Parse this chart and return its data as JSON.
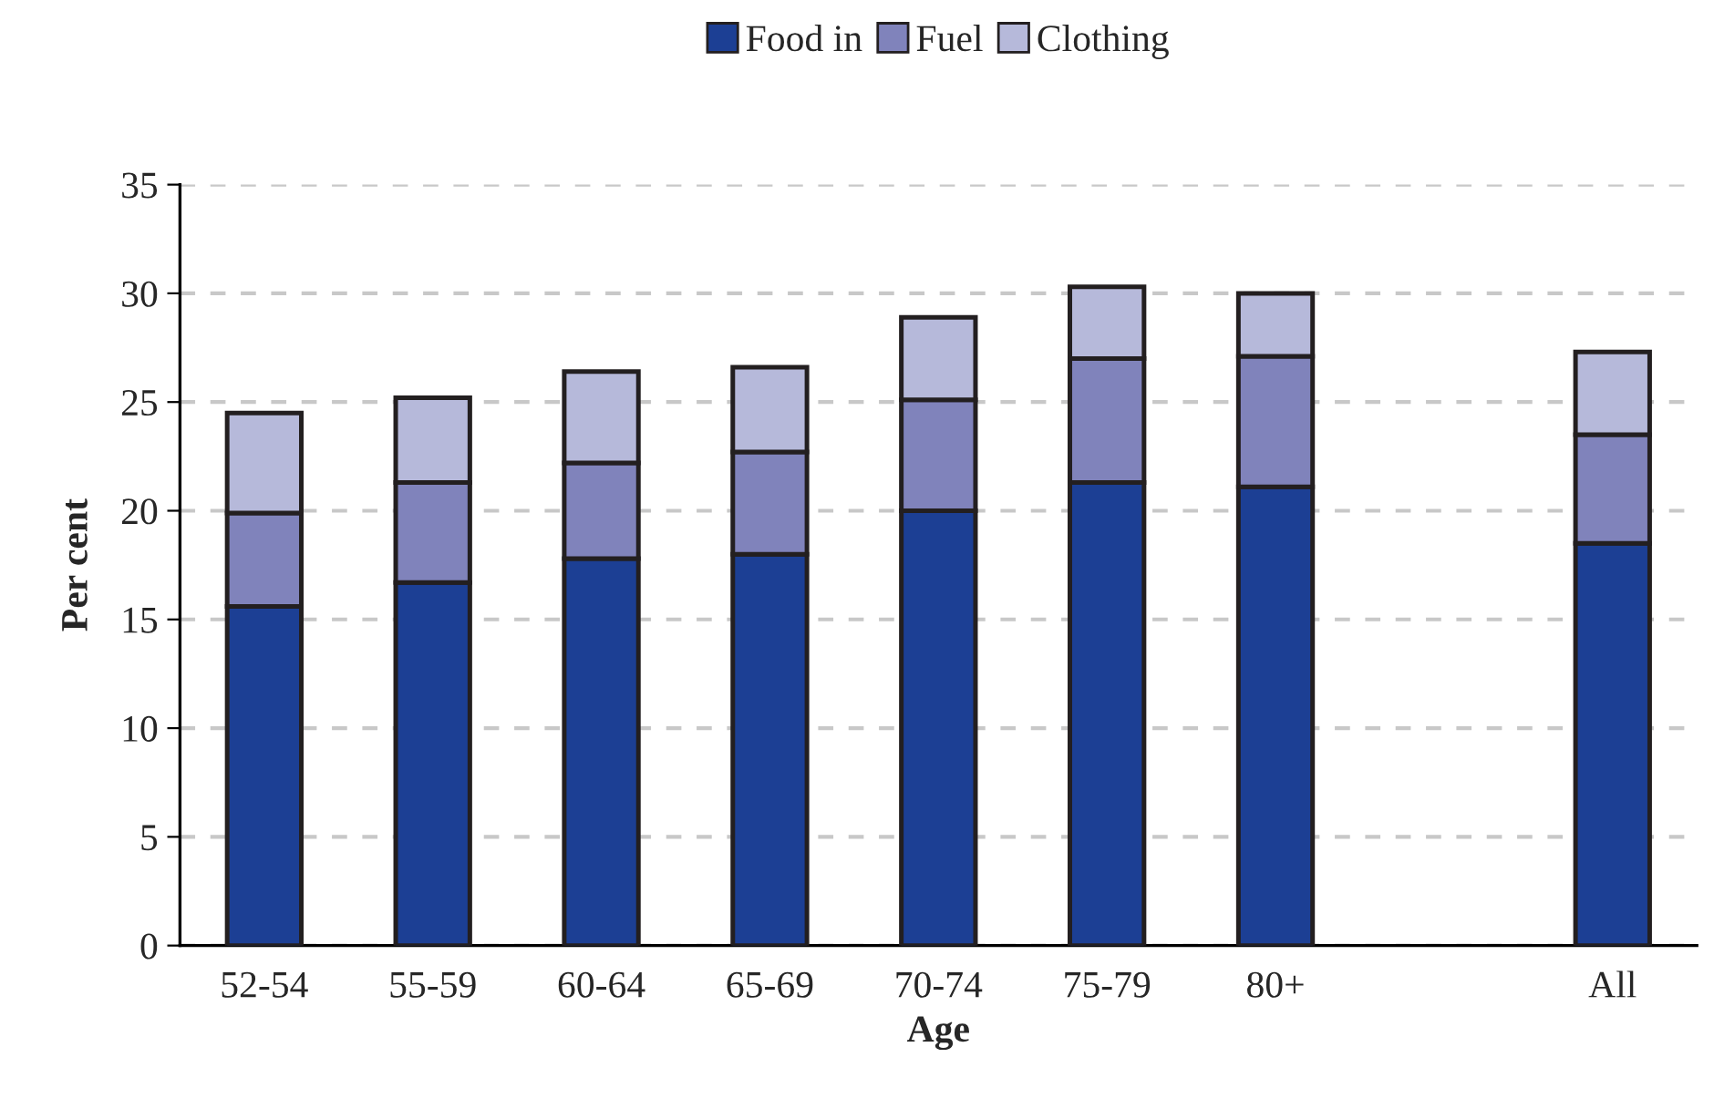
{
  "chart_data": {
    "type": "bar",
    "stacked": true,
    "xlabel": "Age",
    "ylabel": "Per cent",
    "categories": [
      "52-54",
      "55-59",
      "60-64",
      "65-69",
      "70-74",
      "75-79",
      "80+",
      null,
      "All"
    ],
    "series": [
      {
        "name": "Food in",
        "color": "#1c3f94",
        "values": [
          15.6,
          16.7,
          17.8,
          18.0,
          20.0,
          21.3,
          21.1,
          null,
          18.5
        ]
      },
      {
        "name": "Fuel",
        "color": "#8083bb",
        "values": [
          4.3,
          4.6,
          4.4,
          4.7,
          5.1,
          5.7,
          6.0,
          null,
          5.0
        ]
      },
      {
        "name": "Clothing",
        "color": "#b6b9da",
        "values": [
          4.6,
          3.9,
          4.2,
          3.9,
          3.8,
          3.3,
          2.9,
          null,
          3.8
        ]
      }
    ],
    "ylim": [
      0,
      35
    ],
    "yticks": [
      0,
      5,
      10,
      15,
      20,
      25,
      30,
      35
    ],
    "grid": "y",
    "legend": "top"
  }
}
